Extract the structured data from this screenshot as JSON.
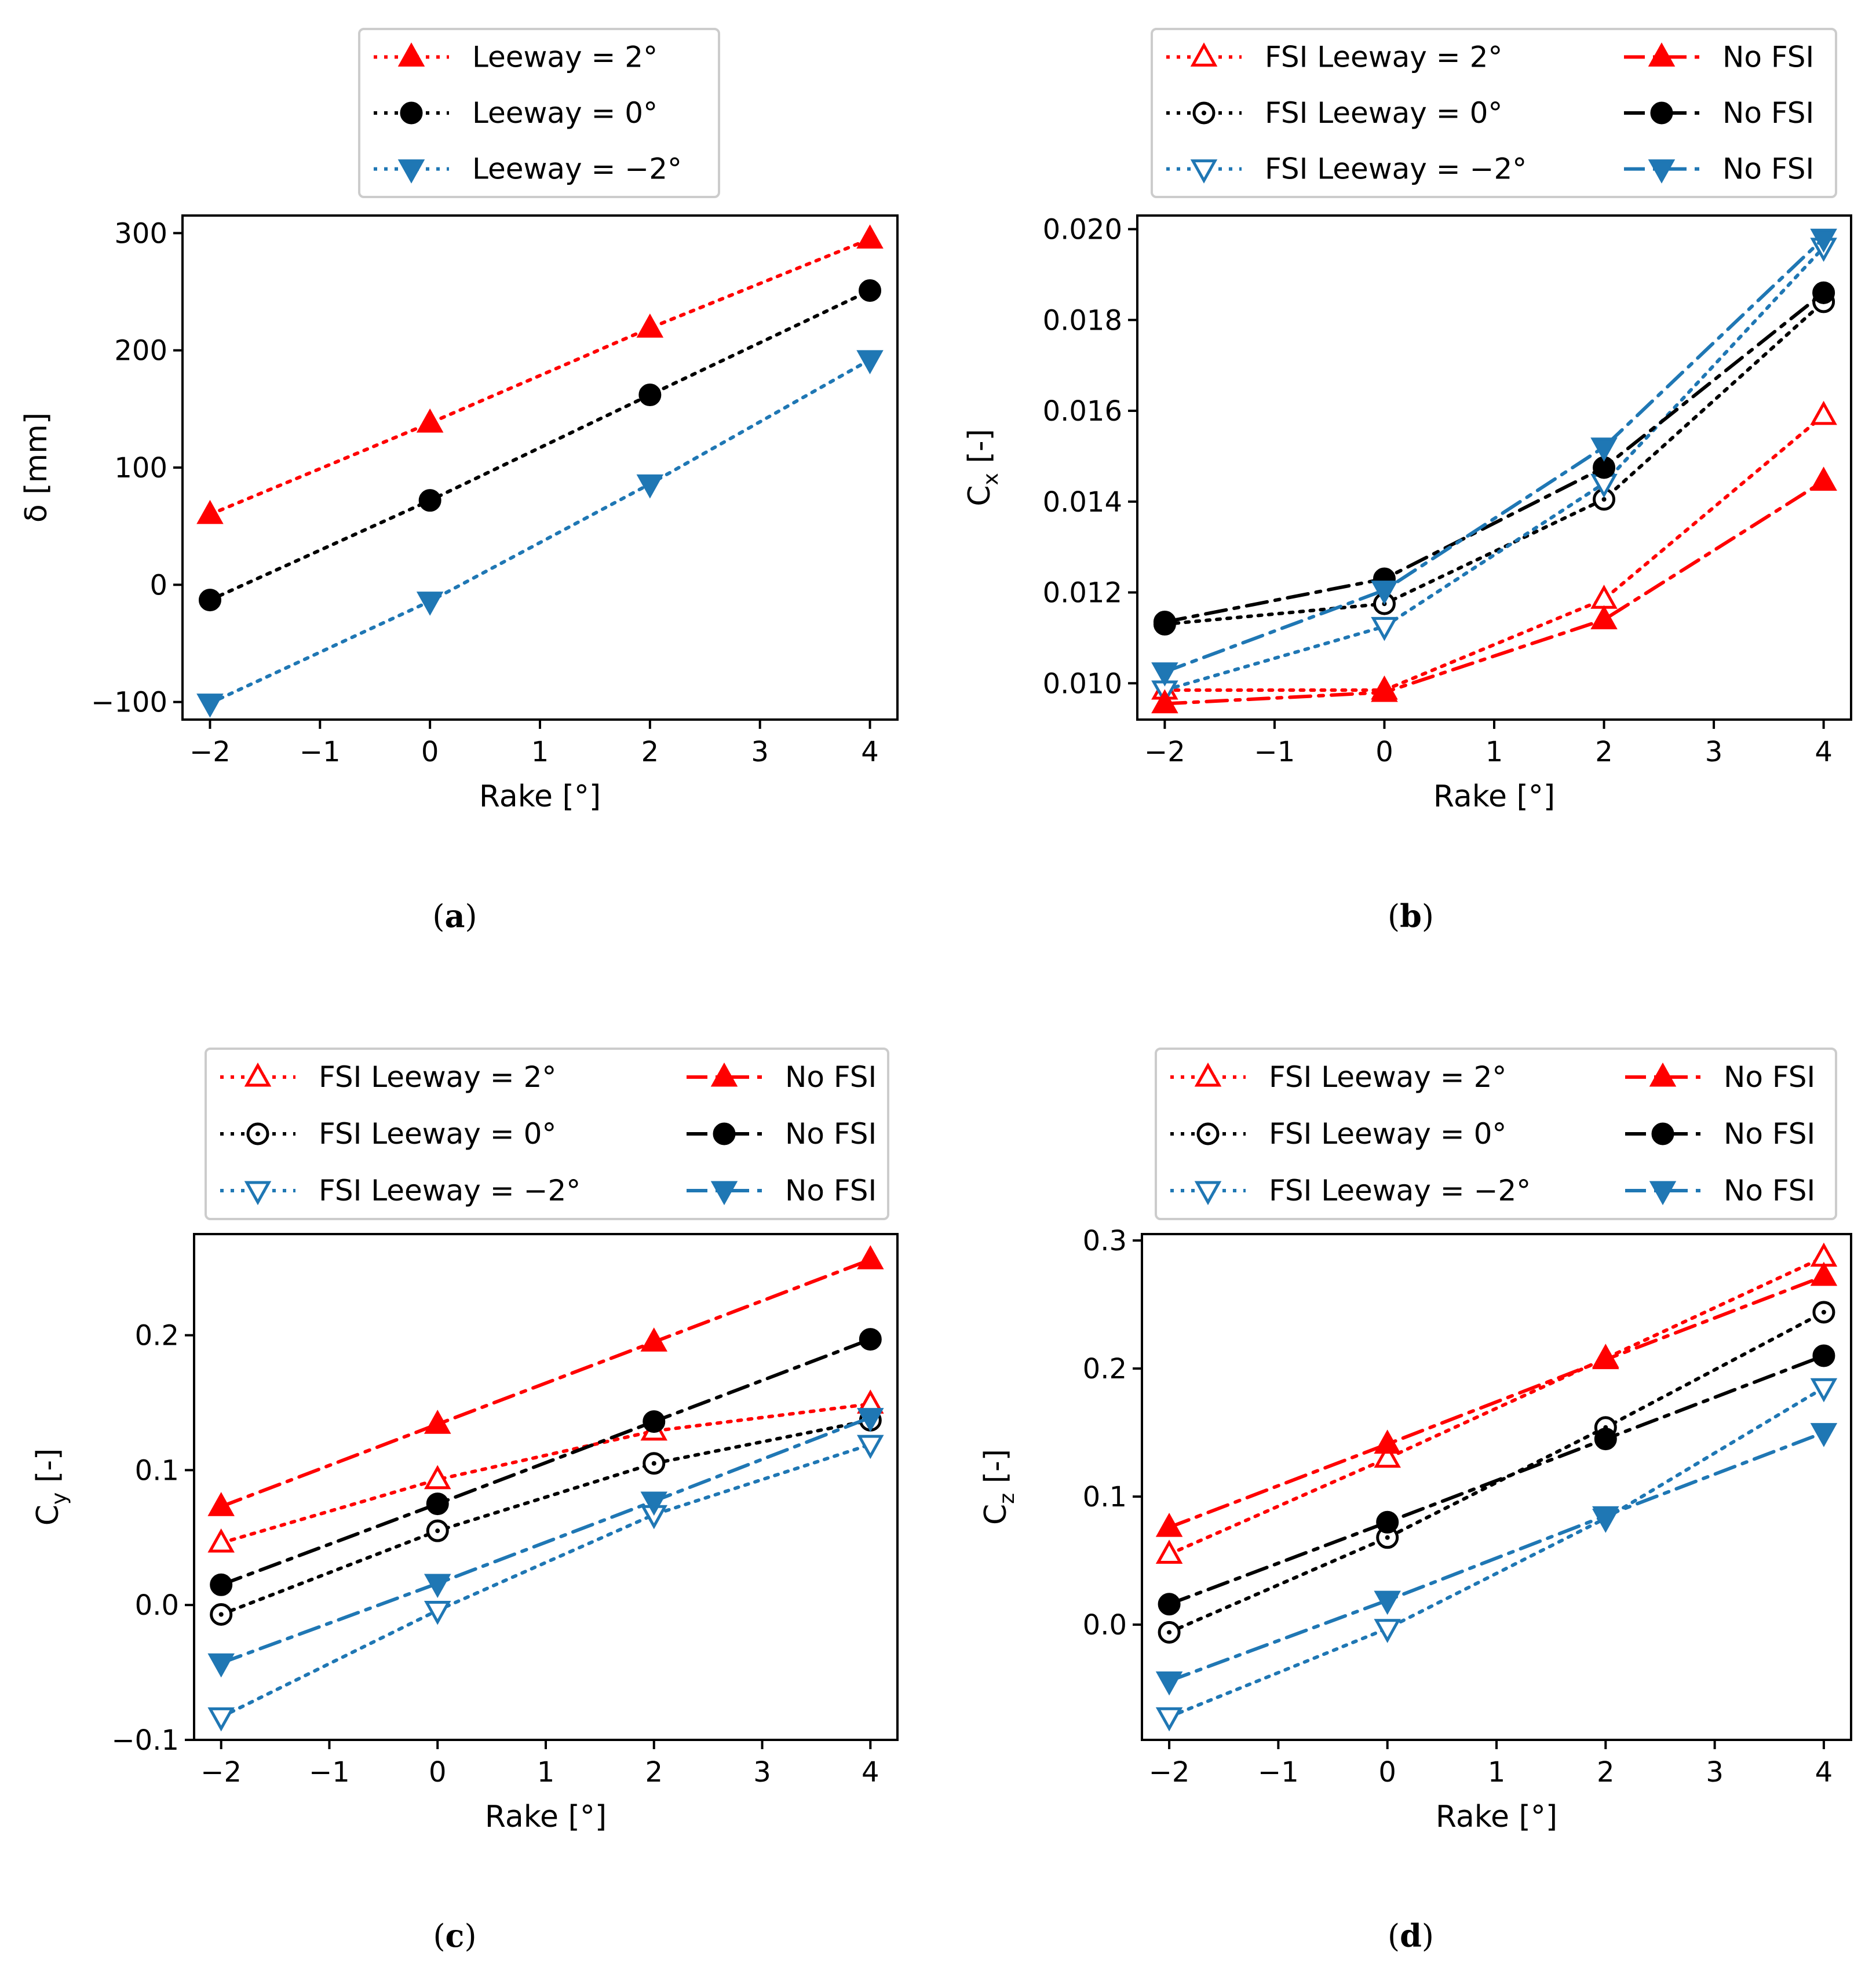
{
  "chart_data": [
    {
      "id": "a",
      "type": "line",
      "caption": "a",
      "xlabel": "Rake [°]",
      "ylabel": "δ [mm]",
      "xlim": [
        -2.25,
        4.25
      ],
      "ylim": [
        -115,
        315
      ],
      "xticks": [
        -2,
        -1,
        0,
        1,
        2,
        3,
        4
      ],
      "yticks": [
        -100,
        0,
        100,
        200,
        300
      ],
      "ytick_labels": [
        "−100",
        "0",
        "100",
        "200",
        "300"
      ],
      "xtick_labels": [
        "−2",
        "−1",
        "0",
        "1",
        "2",
        "3",
        "4"
      ],
      "x": [
        -2,
        0,
        2,
        4
      ],
      "legend_columns": 1,
      "series": [
        {
          "name": "Leeway = 2°",
          "values": [
            60,
            138,
            219,
            295
          ],
          "color": "#ff0000",
          "marker": "triangle-up",
          "fill": true,
          "dash": "dotted"
        },
        {
          "name": "Leeway = 0°",
          "values": [
            -13,
            72,
            162,
            251
          ],
          "color": "#000000",
          "marker": "circle",
          "fill": true,
          "dash": "dotted"
        },
        {
          "name": "Leeway = −2°",
          "values": [
            -101,
            -14,
            86,
            192
          ],
          "color": "#1f77b4",
          "marker": "triangle-down",
          "fill": true,
          "dash": "dotted"
        }
      ]
    },
    {
      "id": "b",
      "type": "line",
      "caption": "b",
      "xlabel": "Rake [°]",
      "ylabel": "C",
      "ylabel_sub": "x",
      "ylabel_suffix": " [-]",
      "xlim": [
        -2.25,
        4.25
      ],
      "ylim": [
        0.0092,
        0.0203
      ],
      "xticks": [
        -2,
        -1,
        0,
        1,
        2,
        3,
        4
      ],
      "yticks": [
        0.01,
        0.012,
        0.014,
        0.016,
        0.018,
        0.02
      ],
      "ytick_labels": [
        "0.010",
        "0.012",
        "0.014",
        "0.016",
        "0.018",
        "0.020"
      ],
      "xtick_labels": [
        "−2",
        "−1",
        "0",
        "1",
        "2",
        "3",
        "4"
      ],
      "x": [
        -2,
        0,
        2,
        4
      ],
      "legend_columns": 2,
      "series": [
        {
          "name": "FSI Leeway = 2°",
          "values": [
            0.00985,
            0.00985,
            0.01185,
            0.0159
          ],
          "color": "#ff0000",
          "marker": "triangle-up",
          "fill": false,
          "dash": "dotted"
        },
        {
          "name": "FSI Leeway = 0°",
          "values": [
            0.0113,
            0.01175,
            0.01405,
            0.0184
          ],
          "color": "#000000",
          "marker": "circle",
          "fill": false,
          "dash": "dotted"
        },
        {
          "name": "FSI Leeway = −2°",
          "values": [
            0.00985,
            0.01125,
            0.0144,
            0.0196
          ],
          "color": "#1f77b4",
          "marker": "triangle-down",
          "fill": false,
          "dash": "dotted"
        },
        {
          "name": "No FSI",
          "values": [
            0.00955,
            0.0098,
            0.0114,
            0.01445
          ],
          "color": "#ff0000",
          "marker": "triangle-up",
          "fill": true,
          "dash": "dashdot"
        },
        {
          "name": "No FSI",
          "values": [
            0.01135,
            0.0123,
            0.01475,
            0.0186
          ],
          "color": "#000000",
          "marker": "circle",
          "fill": true,
          "dash": "dashdot"
        },
        {
          "name": "No FSI",
          "values": [
            0.01025,
            0.01205,
            0.0152,
            0.0198
          ],
          "color": "#1f77b4",
          "marker": "triangle-down",
          "fill": true,
          "dash": "dashdot"
        }
      ]
    },
    {
      "id": "c",
      "type": "line",
      "caption": "c",
      "xlabel": "Rake [°]",
      "ylabel": "C",
      "ylabel_sub": "y",
      "ylabel_suffix": " [-]",
      "xlim": [
        -2.25,
        4.25
      ],
      "ylim": [
        -0.1,
        0.275
      ],
      "xticks": [
        -2,
        -1,
        0,
        1,
        2,
        3,
        4
      ],
      "yticks": [
        -0.1,
        0.0,
        0.1,
        0.2
      ],
      "ytick_labels": [
        "−0.1",
        "0.0",
        "0.1",
        "0.2"
      ],
      "xtick_labels": [
        "−2",
        "−1",
        "0",
        "1",
        "2",
        "3",
        "4"
      ],
      "x": [
        -2,
        0,
        2,
        4
      ],
      "legend_columns": 2,
      "series": [
        {
          "name": "FSI Leeway = 2°",
          "values": [
            0.046,
            0.093,
            0.129,
            0.149
          ],
          "color": "#ff0000",
          "marker": "triangle-up",
          "fill": false,
          "dash": "dotted"
        },
        {
          "name": "FSI Leeway = 0°",
          "values": [
            -0.007,
            0.055,
            0.105,
            0.137
          ],
          "color": "#000000",
          "marker": "circle",
          "fill": false,
          "dash": "dotted"
        },
        {
          "name": "FSI Leeway = −2°",
          "values": [
            -0.083,
            -0.004,
            0.067,
            0.119
          ],
          "color": "#1f77b4",
          "marker": "triangle-down",
          "fill": false,
          "dash": "dotted"
        },
        {
          "name": "No FSI",
          "values": [
            0.073,
            0.134,
            0.195,
            0.256
          ],
          "color": "#ff0000",
          "marker": "triangle-up",
          "fill": true,
          "dash": "dashdot"
        },
        {
          "name": "No FSI",
          "values": [
            0.015,
            0.075,
            0.136,
            0.197
          ],
          "color": "#000000",
          "marker": "circle",
          "fill": true,
          "dash": "dashdot"
        },
        {
          "name": "No FSI",
          "values": [
            -0.043,
            0.016,
            0.077,
            0.139
          ],
          "color": "#1f77b4",
          "marker": "triangle-down",
          "fill": true,
          "dash": "dashdot"
        }
      ]
    },
    {
      "id": "d",
      "type": "line",
      "caption": "d",
      "xlabel": "Rake [°]",
      "ylabel": "C",
      "ylabel_sub": "z",
      "ylabel_suffix": " [-]",
      "xlim": [
        -2.25,
        4.25
      ],
      "ylim": [
        -0.09,
        0.305
      ],
      "xticks": [
        -2,
        -1,
        0,
        1,
        2,
        3,
        4
      ],
      "yticks": [
        0.0,
        0.1,
        0.2,
        0.3
      ],
      "ytick_labels": [
        "0.0",
        "0.1",
        "0.2",
        "0.3"
      ],
      "xtick_labels": [
        "−2",
        "−1",
        "0",
        "1",
        "2",
        "3",
        "4"
      ],
      "x": [
        -2,
        0,
        2,
        4
      ],
      "legend_columns": 2,
      "series": [
        {
          "name": "FSI Leeway = 2°",
          "values": [
            0.055,
            0.13,
            0.208,
            0.287
          ],
          "color": "#ff0000",
          "marker": "triangle-up",
          "fill": false,
          "dash": "dotted"
        },
        {
          "name": "FSI Leeway = 0°",
          "values": [
            -0.006,
            0.068,
            0.154,
            0.244
          ],
          "color": "#000000",
          "marker": "circle",
          "fill": false,
          "dash": "dotted"
        },
        {
          "name": "FSI Leeway = −2°",
          "values": [
            -0.072,
            -0.003,
            0.083,
            0.185
          ],
          "color": "#1f77b4",
          "marker": "triangle-down",
          "fill": false,
          "dash": "dotted"
        },
        {
          "name": "No FSI",
          "values": [
            0.076,
            0.141,
            0.207,
            0.272
          ],
          "color": "#ff0000",
          "marker": "triangle-up",
          "fill": true,
          "dash": "dashdot"
        },
        {
          "name": "No FSI",
          "values": [
            0.016,
            0.08,
            0.145,
            0.21
          ],
          "color": "#000000",
          "marker": "circle",
          "fill": true,
          "dash": "dashdot"
        },
        {
          "name": "No FSI",
          "values": [
            -0.044,
            0.019,
            0.085,
            0.15
          ],
          "color": "#1f77b4",
          "marker": "triangle-down",
          "fill": true,
          "dash": "dashdot"
        }
      ]
    }
  ]
}
